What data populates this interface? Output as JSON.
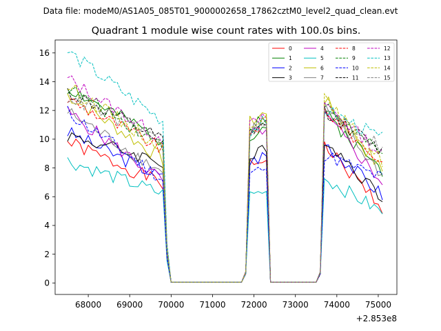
{
  "chart_data": {
    "type": "line",
    "suptitle": "Data file: modeM0/AS1A05_085T01_9000002658_17862cztM0_level2_quad_clean.evt",
    "title": "Quadrant 1 module wise count rates with 100.0s bins.",
    "xlabel": "",
    "ylabel": "",
    "offset_label": "+2.853e8",
    "xlim": [
      67200,
      75450
    ],
    "ylim": [
      -0.8,
      16.9
    ],
    "xticks": [
      68000,
      69000,
      70000,
      71000,
      72000,
      73000,
      74000,
      75000
    ],
    "xtick_labels": [
      "68000",
      "69000",
      "70000",
      "71000",
      "72000",
      "73000",
      "74000",
      "75000"
    ],
    "yticks": [
      0,
      2,
      4,
      6,
      8,
      10,
      12,
      14,
      16
    ],
    "ytick_labels": [
      "0",
      "2",
      "4",
      "6",
      "8",
      "10",
      "12",
      "14",
      "16"
    ],
    "grid": false,
    "legend_position": "top-right",
    "time_grid": {
      "start": 67500,
      "step": 100,
      "count": 77
    },
    "segments": [
      {
        "from": 0,
        "to": 23,
        "kind": "active"
      },
      {
        "from": 24,
        "to": 24,
        "kind": "drop"
      },
      {
        "from": 25,
        "to": 42,
        "kind": "zero"
      },
      {
        "from": 43,
        "to": 43,
        "kind": "ramp"
      },
      {
        "from": 44,
        "to": 48,
        "kind": "active"
      },
      {
        "from": 49,
        "to": 60,
        "kind": "zero"
      },
      {
        "from": 61,
        "to": 61,
        "kind": "ramp"
      },
      {
        "from": 62,
        "to": 76,
        "kind": "active"
      }
    ],
    "series": [
      {
        "name": "0",
        "color": "#ff0000",
        "dash": "solid",
        "start": 9.8,
        "end": 6.9,
        "mid": 8.7,
        "end2": 5.3,
        "seed": 1
      },
      {
        "name": "1",
        "color": "#008000",
        "dash": "solid",
        "start": 13.6,
        "end": 9.9,
        "mid": 11.0,
        "end2": 7.8,
        "seed": 2
      },
      {
        "name": "2",
        "color": "#0000ff",
        "dash": "solid",
        "start": 10.5,
        "end": 7.3,
        "mid": 9.0,
        "end2": 6.1,
        "seed": 3
      },
      {
        "name": "3",
        "color": "#000000",
        "dash": "solid",
        "start": 10.3,
        "end": 8.4,
        "mid": 9.3,
        "end2": 5.9,
        "seed": 4
      },
      {
        "name": "4",
        "color": "#bf00bf",
        "dash": "solid",
        "start": 11.9,
        "end": 7.1,
        "mid": 10.9,
        "end2": 7.0,
        "seed": 5
      },
      {
        "name": "5",
        "color": "#00bfbf",
        "dash": "solid",
        "start": 8.5,
        "end": 6.2,
        "mid": 6.5,
        "end2": 4.9,
        "seed": 6
      },
      {
        "name": "6",
        "color": "#bfbf00",
        "dash": "solid",
        "start": 13.1,
        "end": 8.6,
        "mid": 12.0,
        "end2": 7.8,
        "seed": 7
      },
      {
        "name": "7",
        "color": "#808080",
        "dash": "solid",
        "start": 11.9,
        "end": 7.7,
        "mid": 11.4,
        "end2": 7.5,
        "seed": 8
      },
      {
        "name": "8",
        "color": "#ff0000",
        "dash": "dashed",
        "start": 12.8,
        "end": 9.3,
        "mid": 11.3,
        "end2": 8.3,
        "seed": 9
      },
      {
        "name": "9",
        "color": "#008000",
        "dash": "dashed",
        "start": 13.6,
        "end": 9.6,
        "mid": 11.6,
        "end2": 8.8,
        "seed": 10
      },
      {
        "name": "10",
        "color": "#0000ff",
        "dash": "dashed",
        "start": 11.9,
        "end": 7.2,
        "mid": 8.1,
        "end2": 7.3,
        "seed": 11
      },
      {
        "name": "11",
        "color": "#000000",
        "dash": "dashed",
        "start": 13.3,
        "end": 9.9,
        "mid": 11.2,
        "end2": 9.1,
        "seed": 12
      },
      {
        "name": "12",
        "color": "#bf00bf",
        "dash": "dashed",
        "start": 14.2,
        "end": 10.0,
        "mid": 11.7,
        "end2": 8.9,
        "seed": 13
      },
      {
        "name": "13",
        "color": "#00bfbf",
        "dash": "dashed",
        "start": 16.1,
        "end": 11.3,
        "mid": 11.3,
        "end2": 10.0,
        "seed": 14
      },
      {
        "name": "14",
        "color": "#bfbf00",
        "dash": "dashed",
        "start": 13.7,
        "end": 9.4,
        "mid": 11.9,
        "end2": 8.5,
        "seed": 15
      },
      {
        "name": "15",
        "color": "#808080",
        "dash": "dashed",
        "start": 13.0,
        "end": 9.9,
        "mid": 11.2,
        "end2": 9.5,
        "seed": 16
      }
    ]
  }
}
